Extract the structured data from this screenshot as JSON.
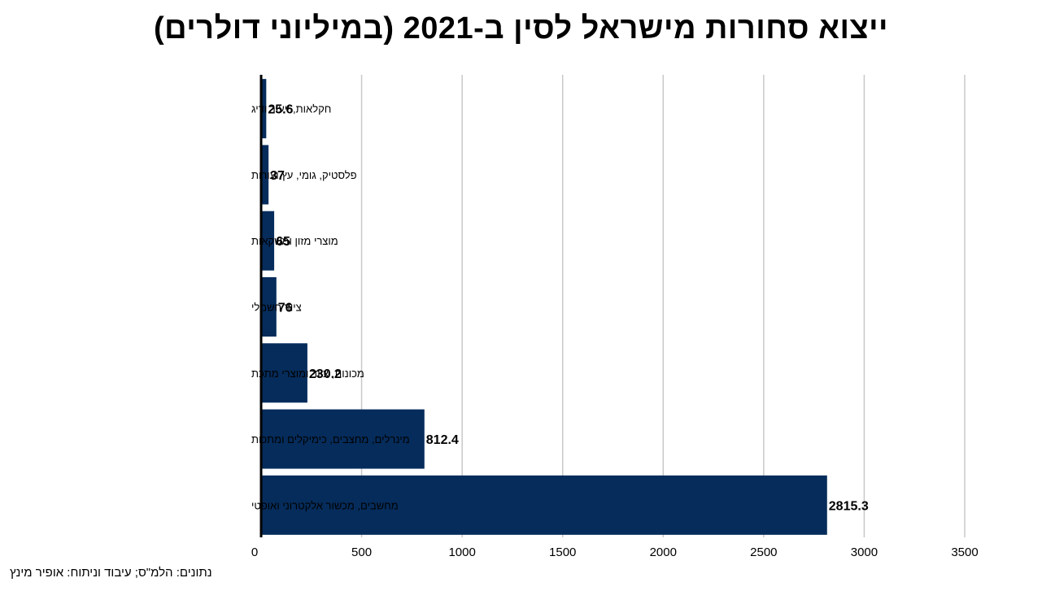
{
  "chart_data": {
    "type": "bar",
    "orientation": "horizontal",
    "title": "ייצוא סחורות מישראל לסין ב-2021 (במיליוני דולרים)",
    "categories": [
      "חקלאות, ייעור ודיג",
      "פלסטיק, גומי, עץ ועורות",
      "מוצרי מזון ומשקאות",
      "ציוד חשמלי",
      "מכונות, ציוד ומוצרי מתכת",
      "מינרלים, מחצבים, כימיקלים ומתכות",
      "מחשבים, מכשור אלקטרוני ואופטי"
    ],
    "values": [
      25.6,
      37,
      65,
      76,
      230.2,
      812.4,
      2815.3
    ],
    "value_labels": [
      "25.6",
      "37",
      "65",
      "76",
      "230.2",
      "812.4",
      "2815.3"
    ],
    "xlim": [
      0,
      3500
    ],
    "x_ticks": [
      0,
      500,
      1000,
      1500,
      2000,
      2500,
      3000,
      3500
    ],
    "x_tick_labels": [
      "0",
      "500",
      "1000",
      "1500",
      "2000",
      "2500",
      "3000",
      "3500"
    ],
    "xlabel": "",
    "ylabel": "",
    "grid": "vertical",
    "legend": "none",
    "bar_color": "#052c5b",
    "grid_color": "#c8c8c8"
  },
  "source_note": "נתונים: הלמ\"ס; עיבוד וניתוח: אופיר מינץ"
}
